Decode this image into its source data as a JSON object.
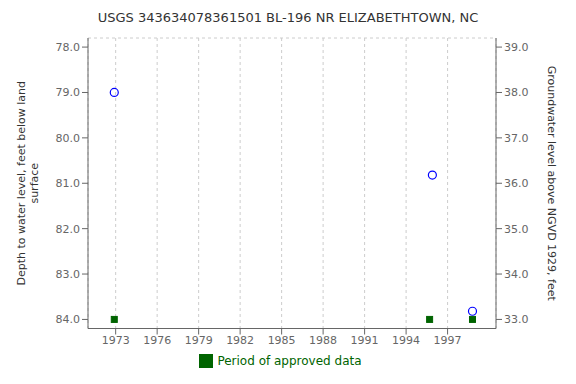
{
  "chart_data": {
    "type": "scatter",
    "title": "USGS 343634078361501 BL-196 NR ELIZABETHTOWN, NC",
    "ylabel": "Depth to water level, feet below land\nsurface",
    "y2label": "Groundwater level above NGVD 1929, feet",
    "xlim": [
      1971.0,
      2000.5
    ],
    "xticks": [
      1973,
      1976,
      1979,
      1982,
      1985,
      1988,
      1991,
      1994,
      1997
    ],
    "ylim": [
      84.2,
      77.8
    ],
    "yticks": [
      {
        "value": 78.0,
        "label": "78.0"
      },
      {
        "value": 79.0,
        "label": "79.0"
      },
      {
        "value": 80.0,
        "label": "80.0"
      },
      {
        "value": 81.0,
        "label": "81.0"
      },
      {
        "value": 82.0,
        "label": "82.0"
      },
      {
        "value": 83.0,
        "label": "83.0"
      },
      {
        "value": 84.0,
        "label": "84.0"
      }
    ],
    "y2lim": [
      32.8,
      39.2
    ],
    "y2ticks": [
      {
        "value": 33.0,
        "label": "33.0"
      },
      {
        "value": 34.0,
        "label": "34.0"
      },
      {
        "value": 35.0,
        "label": "35.0"
      },
      {
        "value": 36.0,
        "label": "36.0"
      },
      {
        "value": 37.0,
        "label": "37.0"
      },
      {
        "value": 38.0,
        "label": "38.0"
      },
      {
        "value": 39.0,
        "label": "39.0"
      }
    ],
    "grid": true,
    "legend": "bottom",
    "series": [
      {
        "color": "blue",
        "marker": "open_circle",
        "x": [
          1972.9,
          1995.9,
          1998.8
        ],
        "values": [
          79.0,
          80.82,
          83.82
        ]
      },
      {
        "name": "Period of approved data",
        "color": "#006400",
        "marker": "square",
        "x": [
          1972.9,
          1995.7,
          1998.8
        ],
        "values": [
          84.0,
          84.0,
          84.0
        ]
      }
    ]
  }
}
